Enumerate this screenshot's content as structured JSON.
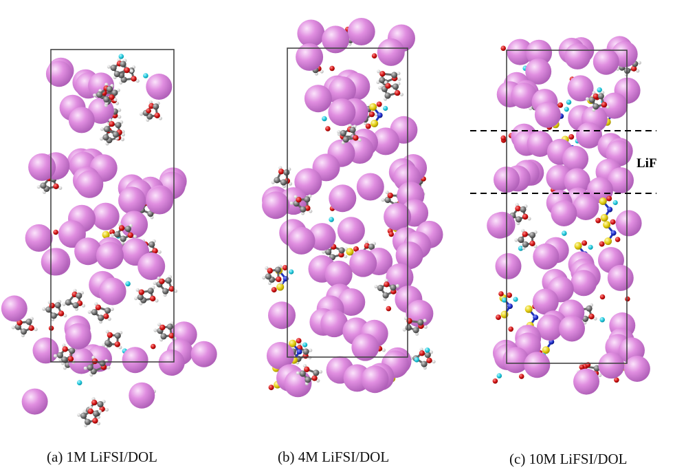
{
  "panels": [
    {
      "id": "a",
      "caption": "(a) 1M LiFSI/DOL"
    },
    {
      "id": "b",
      "caption": "(b) 4M LiFSI/DOL"
    },
    {
      "id": "c",
      "caption": "(c) 10M LiFSI/DOL"
    }
  ],
  "annotation": {
    "lif_label": "LiF"
  },
  "colors": {
    "lithium": "#dd88dd",
    "oxygen": "#cc1111",
    "carbon": "#777777",
    "hydrogen": "#e8e8e8",
    "fluorine": "#22ccdd",
    "sulfur": "#e6d11a",
    "nitrogen": "#1f2fcc",
    "cell_border": "#444444"
  }
}
